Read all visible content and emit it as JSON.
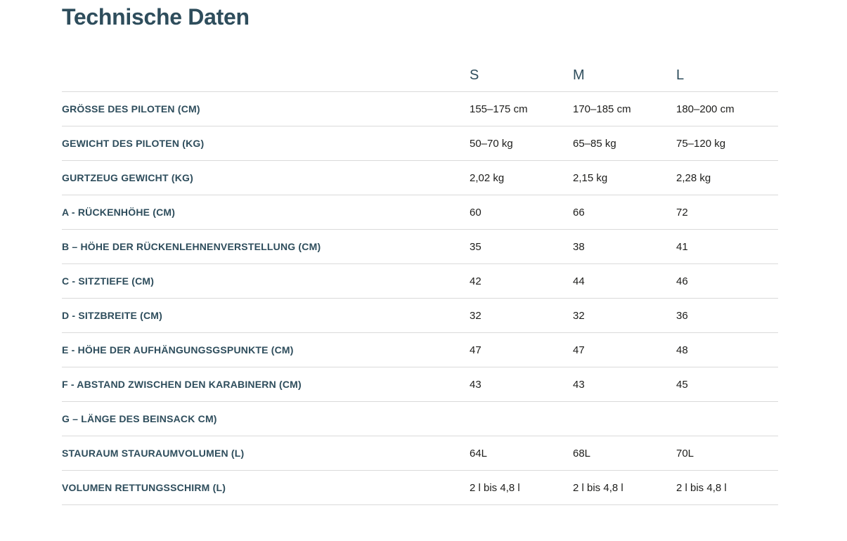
{
  "page": {
    "title": "Technische Daten"
  },
  "colors": {
    "accent_heading": "#2e4d5c",
    "value_text": "#1d1d1b",
    "divider": "#dadada",
    "background": "#ffffff"
  },
  "spec_table": {
    "size_columns": [
      "S",
      "M",
      "L"
    ],
    "rows": [
      {
        "label": "GRÖSSE DES PILOTEN (CM)",
        "values": [
          "155–175 cm",
          "170–185 cm",
          "180–200 cm"
        ]
      },
      {
        "label": "GEWICHT DES PILOTEN (KG)",
        "values": [
          "50–70 kg",
          "65–85 kg",
          "75–120 kg"
        ]
      },
      {
        "label": "GURTZEUG GEWICHT (KG)",
        "values": [
          "2,02 kg",
          "2,15 kg",
          "2,28 kg"
        ]
      },
      {
        "label": "A - RÜCKENHÖHE (CM)",
        "values": [
          "60",
          "66",
          "72"
        ]
      },
      {
        "label": "B – HÖHE DER RÜCKENLEHNENVERSTELLUNG (CM)",
        "values": [
          "35",
          "38",
          "41"
        ]
      },
      {
        "label": "C - SITZTIEFE (CM)",
        "values": [
          "42",
          "44",
          "46"
        ]
      },
      {
        "label": "D - SITZBREITE (CM)",
        "values": [
          "32",
          "32",
          "36"
        ]
      },
      {
        "label": "E - HÖHE DER AUFHÄNGUNGSGSPUNKTE (CM)",
        "values": [
          "47",
          "47",
          "48"
        ]
      },
      {
        "label": "F - ABSTAND ZWISCHEN DEN KARABINERN (CM)",
        "values": [
          "43",
          "43",
          "45"
        ]
      },
      {
        "label": "G – LÄNGE DES BEINSACK CM)",
        "values": [
          "",
          "",
          ""
        ]
      },
      {
        "label": "STAURAUM STAURAUMVOLUMEN (L)",
        "values": [
          "64L",
          "68L",
          "70L"
        ]
      },
      {
        "label": "VOLUMEN RETTUNGSSCHIRM (L)",
        "values": [
          "2 l bis 4,8 l",
          "2 l bis 4,8 l",
          "2 l bis 4,8 l"
        ]
      }
    ]
  }
}
